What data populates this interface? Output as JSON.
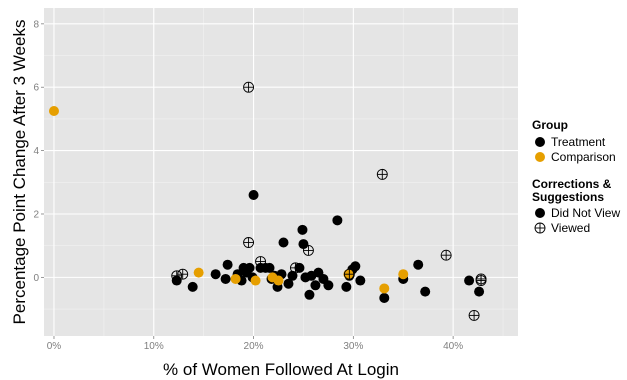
{
  "chart_data": {
    "type": "scatter",
    "xlabel": "% of Women Followed At Login",
    "ylabel": "Percentage Point Change After 3 Weeks",
    "xlim": [
      -1,
      46.5
    ],
    "ylim": [
      -1.85,
      8.5
    ],
    "x_ticks": [
      0,
      10,
      20,
      30,
      40
    ],
    "x_tick_labels": [
      "0%",
      "10%",
      "20%",
      "30%",
      "40%"
    ],
    "y_ticks": [
      0,
      2,
      4,
      6,
      8
    ],
    "y_tick_labels": [
      "0",
      "2",
      "4",
      "6",
      "8"
    ],
    "grid": true,
    "background": "#e5e5e5",
    "legend_position": "right",
    "legends": [
      {
        "title": "Group",
        "items": [
          {
            "label": "Treatment",
            "color": "#000000",
            "shape": "filled-circle"
          },
          {
            "label": "Comparison",
            "color": "#e69f00",
            "shape": "filled-circle"
          }
        ]
      },
      {
        "title": "Corrections & Suggestions",
        "title_lines": [
          "Corrections &",
          "Suggestions"
        ],
        "items": [
          {
            "label": "Did Not View",
            "shape": "filled-circle"
          },
          {
            "label": "Viewed",
            "shape": "circle-plus"
          }
        ]
      }
    ],
    "series": [
      {
        "name": "Treatment",
        "color": "#000000",
        "marker": "filled-circle",
        "points": [
          [
            12.3,
            -0.1
          ],
          [
            13.9,
            -0.3
          ],
          [
            16.2,
            0.1
          ],
          [
            17.2,
            -0.05
          ],
          [
            17.4,
            0.4
          ],
          [
            18.4,
            0.1
          ],
          [
            18.8,
            -0.1
          ],
          [
            19.0,
            0.3
          ],
          [
            19.3,
            0.15
          ],
          [
            19.6,
            0.3
          ],
          [
            19.9,
            0.0
          ],
          [
            20.0,
            2.6
          ],
          [
            20.7,
            0.3
          ],
          [
            21.2,
            0.3
          ],
          [
            21.6,
            0.3
          ],
          [
            21.8,
            -0.05
          ],
          [
            22.1,
            0.05
          ],
          [
            22.4,
            -0.3
          ],
          [
            22.8,
            0.1
          ],
          [
            23.0,
            1.1
          ],
          [
            23.5,
            -0.2
          ],
          [
            23.9,
            0.05
          ],
          [
            24.6,
            0.3
          ],
          [
            24.9,
            1.5
          ],
          [
            25.0,
            1.05
          ],
          [
            25.2,
            0.0
          ],
          [
            25.6,
            -0.55
          ],
          [
            25.8,
            0.05
          ],
          [
            26.2,
            -0.25
          ],
          [
            26.5,
            0.15
          ],
          [
            27.0,
            -0.05
          ],
          [
            27.5,
            -0.25
          ],
          [
            28.4,
            1.8
          ],
          [
            29.3,
            -0.3
          ],
          [
            29.6,
            0.05
          ],
          [
            29.9,
            0.25
          ],
          [
            30.2,
            0.35
          ],
          [
            30.7,
            -0.1
          ],
          [
            33.1,
            -0.65
          ],
          [
            35.0,
            -0.05
          ],
          [
            36.5,
            0.4
          ],
          [
            37.2,
            -0.45
          ],
          [
            41.6,
            -0.1
          ],
          [
            42.6,
            -0.45
          ]
        ]
      },
      {
        "name": "Comparison",
        "color": "#e69f00",
        "marker": "filled-circle",
        "points": [
          [
            0.0,
            5.25
          ],
          [
            14.5,
            0.15
          ],
          [
            18.2,
            -0.05
          ],
          [
            20.2,
            -0.1
          ],
          [
            21.9,
            0.0
          ],
          [
            22.5,
            -0.1
          ],
          [
            29.5,
            0.1
          ],
          [
            33.1,
            -0.35
          ],
          [
            35.0,
            0.1
          ]
        ]
      },
      {
        "name": "Viewed",
        "color": "#000000",
        "marker": "circle-plus",
        "points": [
          [
            12.3,
            0.05
          ],
          [
            12.9,
            0.1
          ],
          [
            19.5,
            6.0
          ],
          [
            19.5,
            1.1
          ],
          [
            20.7,
            0.5
          ],
          [
            24.2,
            0.3
          ],
          [
            25.5,
            0.85
          ],
          [
            29.6,
            0.1
          ],
          [
            32.9,
            3.25
          ],
          [
            39.3,
            0.7
          ],
          [
            42.1,
            -1.2
          ],
          [
            42.8,
            -0.1
          ],
          [
            42.8,
            -0.05
          ]
        ]
      }
    ]
  }
}
